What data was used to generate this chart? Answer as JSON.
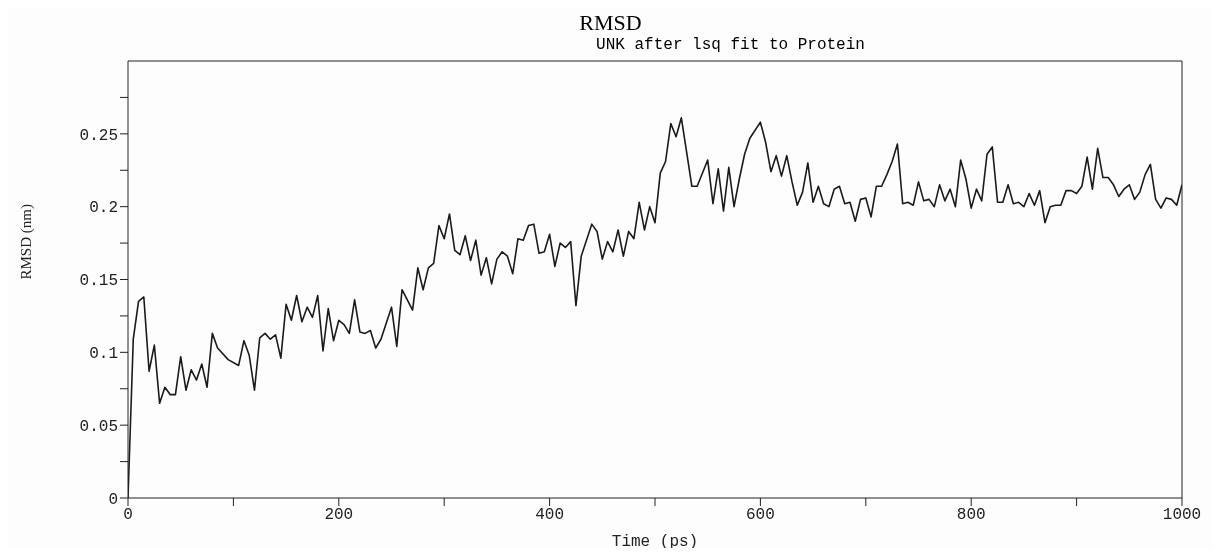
{
  "chart_data": {
    "type": "line",
    "title": "RMSD",
    "subtitle": "UNK after lsq fit to Protein",
    "xlabel": "Time (ps)",
    "ylabel": "RMSD (nm)",
    "x": [
      0,
      5,
      10,
      15,
      20,
      25,
      30,
      35,
      40,
      45,
      50,
      55,
      60,
      65,
      70,
      75,
      80,
      85,
      95,
      105,
      110,
      115,
      120,
      125,
      130,
      135,
      140,
      145,
      150,
      155,
      160,
      165,
      170,
      175,
      180,
      185,
      190,
      195,
      200,
      205,
      210,
      215,
      220,
      225,
      230,
      235,
      240,
      250,
      255,
      260,
      270,
      275,
      280,
      285,
      290,
      295,
      300,
      305,
      310,
      315,
      320,
      325,
      330,
      335,
      340,
      345,
      350,
      355,
      360,
      365,
      370,
      375,
      380,
      385,
      390,
      395,
      400,
      405,
      410,
      415,
      420,
      425,
      430,
      440,
      445,
      450,
      455,
      460,
      465,
      470,
      475,
      480,
      485,
      490,
      495,
      500,
      505,
      510,
      515,
      520,
      525,
      535,
      540,
      550,
      555,
      560,
      565,
      570,
      575,
      580,
      585,
      590,
      600,
      605,
      610,
      615,
      620,
      625,
      630,
      635,
      640,
      645,
      650,
      655,
      660,
      665,
      670,
      675,
      680,
      685,
      690,
      695,
      700,
      705,
      710,
      715,
      720,
      725,
      730,
      735,
      740,
      745,
      750,
      755,
      760,
      765,
      770,
      775,
      780,
      785,
      790,
      795,
      800,
      805,
      810,
      815,
      820,
      825,
      830,
      835,
      840,
      845,
      850,
      855,
      860,
      865,
      870,
      875,
      880,
      885,
      890,
      895,
      900,
      905,
      910,
      915,
      920,
      925,
      930,
      935,
      940,
      945,
      950,
      955,
      960,
      965,
      970,
      975,
      980,
      985,
      990,
      995,
      1000
    ],
    "series": [
      {
        "color": "#1a1a1a",
        "values": [
          0,
          0.109,
          0.135,
          0.138,
          0.087,
          0.105,
          0.065,
          0.076,
          0.071,
          0.071,
          0.097,
          0.074,
          0.088,
          0.081,
          0.092,
          0.076,
          0.113,
          0.103,
          0.095,
          0.091,
          0.108,
          0.098,
          0.074,
          0.11,
          0.113,
          0.109,
          0.112,
          0.096,
          0.133,
          0.122,
          0.139,
          0.121,
          0.131,
          0.124,
          0.139,
          0.101,
          0.13,
          0.108,
          0.122,
          0.119,
          0.113,
          0.136,
          0.114,
          0.113,
          0.115,
          0.103,
          0.109,
          0.131,
          0.104,
          0.143,
          0.129,
          0.158,
          0.143,
          0.158,
          0.161,
          0.187,
          0.178,
          0.195,
          0.17,
          0.167,
          0.18,
          0.163,
          0.177,
          0.153,
          0.165,
          0.147,
          0.164,
          0.169,
          0.166,
          0.154,
          0.178,
          0.177,
          0.187,
          0.188,
          0.168,
          0.169,
          0.181,
          0.159,
          0.175,
          0.172,
          0.176,
          0.132,
          0.166,
          0.188,
          0.183,
          0.164,
          0.176,
          0.169,
          0.184,
          0.166,
          0.183,
          0.178,
          0.203,
          0.184,
          0.2,
          0.189,
          0.223,
          0.231,
          0.257,
          0.248,
          0.261,
          0.214,
          0.214,
          0.232,
          0.202,
          0.226,
          0.197,
          0.227,
          0.2,
          0.219,
          0.236,
          0.247,
          0.258,
          0.244,
          0.224,
          0.235,
          0.221,
          0.235,
          0.217,
          0.201,
          0.21,
          0.23,
          0.203,
          0.214,
          0.202,
          0.2,
          0.212,
          0.214,
          0.202,
          0.203,
          0.19,
          0.205,
          0.206,
          0.193,
          0.214,
          0.214,
          0.222,
          0.231,
          0.243,
          0.202,
          0.203,
          0.201,
          0.217,
          0.204,
          0.205,
          0.2,
          0.215,
          0.204,
          0.212,
          0.2,
          0.232,
          0.219,
          0.199,
          0.212,
          0.204,
          0.236,
          0.241,
          0.203,
          0.203,
          0.215,
          0.202,
          0.203,
          0.2,
          0.209,
          0.201,
          0.211,
          0.189,
          0.2,
          0.201,
          0.201,
          0.211,
          0.211,
          0.209,
          0.214,
          0.234,
          0.212,
          0.24,
          0.22,
          0.22,
          0.215,
          0.207,
          0.212,
          0.215,
          0.205,
          0.21,
          0.222,
          0.229,
          0.205,
          0.199,
          0.206,
          0.205,
          0.201,
          0.215
        ]
      }
    ],
    "xlim": [
      0,
      1000
    ],
    "xticks": [
      0,
      {
        "value": 100,
        "label": null
      },
      200,
      {
        "value": 300,
        "label": null
      },
      400,
      {
        "value": 500,
        "label": null
      },
      600,
      {
        "value": 700,
        "label": null
      },
      800,
      {
        "value": 900,
        "label": null
      },
      1000
    ],
    "ylim": [
      0,
      0.3
    ],
    "yticks": [
      0,
      {
        "value": 0.025,
        "label": null
      },
      0.05,
      {
        "value": 0.075,
        "label": null
      },
      0.1,
      {
        "value": 0.125,
        "label": null
      },
      0.15,
      {
        "value": 0.175,
        "label": null
      },
      0.2,
      {
        "value": 0.225,
        "label": null
      },
      0.25,
      {
        "value": 0.275,
        "label": null
      }
    ],
    "grid": false,
    "legend": false,
    "marker": "none",
    "line_style": "solid"
  }
}
